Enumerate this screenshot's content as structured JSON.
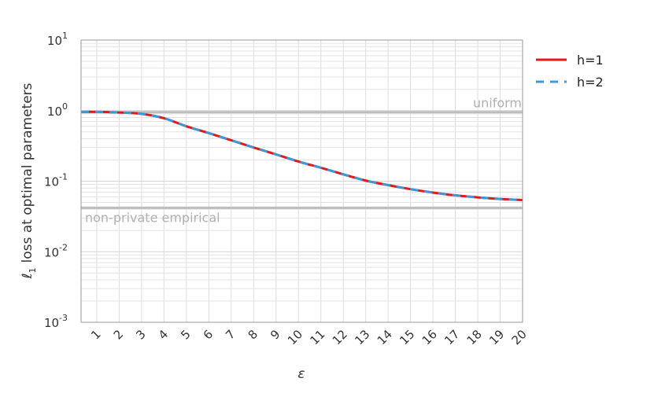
{
  "chart_data": {
    "type": "line",
    "xlabel": "ε",
    "ylabel_symbol": "ℓ",
    "ylabel_sub": "1",
    "ylabel": "loss at optimal parameters",
    "yscale": "log",
    "ylim": [
      0.001,
      10
    ],
    "xlim": [
      0.3,
      20
    ],
    "grid": true,
    "legend_position": "outside-right-top",
    "x_ticks": [
      1,
      2,
      3,
      4,
      5,
      6,
      7,
      8,
      9,
      10,
      11,
      12,
      13,
      14,
      15,
      16,
      17,
      18,
      19,
      20
    ],
    "y_ticks": [
      {
        "value": 0.001,
        "base": "10",
        "exp": "-3"
      },
      {
        "value": 0.01,
        "base": "10",
        "exp": "-2"
      },
      {
        "value": 0.1,
        "base": "10",
        "exp": "-1"
      },
      {
        "value": 1,
        "base": "10",
        "exp": "0"
      },
      {
        "value": 10,
        "base": "10",
        "exp": "1"
      }
    ],
    "reference_lines": [
      {
        "label": "uniform",
        "y": 0.95,
        "color": "#bdbdbd"
      },
      {
        "label": "non-private empirical",
        "y": 0.042,
        "color": "#bdbdbd"
      }
    ],
    "x": [
      0.3,
      1,
      2,
      3,
      4,
      5,
      6,
      7,
      8,
      9,
      10,
      11,
      12,
      13,
      14,
      15,
      16,
      17,
      18,
      19,
      20
    ],
    "series": [
      {
        "name": "h=1",
        "color": "#e31a1c",
        "dash": "solid",
        "values": [
          0.96,
          0.96,
          0.94,
          0.9,
          0.78,
          0.6,
          0.48,
          0.38,
          0.3,
          0.24,
          0.19,
          0.155,
          0.125,
          0.102,
          0.088,
          0.077,
          0.069,
          0.063,
          0.059,
          0.056,
          0.054
        ]
      },
      {
        "name": "h=2",
        "color": "#3a9ad9",
        "dash": "dashed",
        "values": [
          0.96,
          0.96,
          0.94,
          0.9,
          0.78,
          0.6,
          0.48,
          0.38,
          0.3,
          0.24,
          0.19,
          0.155,
          0.125,
          0.102,
          0.088,
          0.077,
          0.069,
          0.063,
          0.059,
          0.056,
          0.054
        ]
      }
    ]
  }
}
